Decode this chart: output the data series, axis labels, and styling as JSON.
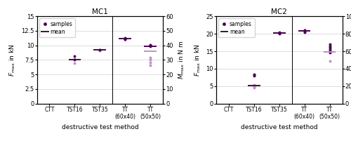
{
  "title1": "MC1",
  "title2": "MC2",
  "xlabel": "destructive test method",
  "ylabel_left": "$F_\\mathrm{max}$ in kN",
  "ylabel_right": "$M_\\mathrm{max}$ in N m",
  "color_dark": "#4a0050",
  "color_light": "#c090c8",
  "mc1": {
    "ylim_left": [
      0,
      15
    ],
    "ylim_right": [
      0,
      60
    ],
    "yticks_left": [
      0,
      2.5,
      5.0,
      7.5,
      10.0,
      12.5,
      15.0
    ],
    "yticks_right": [
      0,
      10,
      20,
      30,
      40,
      50,
      60
    ],
    "ytick_labels_left": [
      "0",
      "2.5",
      "5",
      "7.5",
      "10",
      "12.5",
      "15"
    ],
    "ytick_labels_right": [
      "0",
      "10",
      "20",
      "30",
      "40",
      "50",
      "60"
    ],
    "left_dark_samples": {
      "CTT": [],
      "TST16": [
        7.6,
        8.1
      ],
      "TST35": [
        9.2,
        9.3
      ]
    },
    "left_light_samples": {
      "CTT": [],
      "TST16": [
        7.5,
        7.7,
        6.9
      ],
      "TST35": [
        9.1
      ]
    },
    "left_means": {
      "CTT": null,
      "TST16": 7.6,
      "TST35": 9.25
    },
    "right_F_dark_samples": {
      "TT(60x40)": [
        11.0,
        11.1,
        11.2,
        11.35
      ],
      "TT(50x50)": [
        9.8,
        9.95,
        10.05
      ]
    },
    "right_F_means": {
      "TT(60x40)": 11.15,
      "TT(50x50)": 9.9
    },
    "right_M_light_samples": {
      "TT(60x40)": [],
      "TT(50x50)": [
        26.5,
        28.5,
        30.0,
        31.5,
        40.0,
        40.5
      ]
    },
    "right_M_means": {
      "TT(60x40)": null,
      "TT(50x50)": 36.0
    }
  },
  "mc2": {
    "ylim_left": [
      0,
      25
    ],
    "ylim_right": [
      0,
      100
    ],
    "yticks_left": [
      0,
      5,
      10,
      15,
      20,
      25
    ],
    "yticks_right": [
      0,
      20,
      40,
      60,
      80,
      100
    ],
    "ytick_labels_left": [
      "0",
      "5",
      "10",
      "15",
      "20",
      "25"
    ],
    "ytick_labels_right": [
      "0",
      "20",
      "40",
      "60",
      "80",
      "100"
    ],
    "left_dark_samples": {
      "CTT": [],
      "TST16": [
        8.05,
        8.2,
        8.45
      ],
      "TST35": [
        20.1,
        20.2,
        20.3,
        20.4
      ]
    },
    "left_light_samples": {
      "CTT": [],
      "TST16": [
        4.5,
        4.8,
        5.2,
        5.35
      ],
      "TST35": []
    },
    "left_means": {
      "CTT": null,
      "TST16": 5.1,
      "TST35": 20.25
    },
    "right_F_dark_samples": {
      "TT(60x40)": [
        20.5,
        20.7,
        20.95,
        21.1
      ],
      "TT(50x50)": [
        14.5,
        15.5,
        16.0,
        16.5,
        17.0
      ]
    },
    "right_F_means": {
      "TT(60x40)": 20.8,
      "TT(50x50)": 14.8
    },
    "right_M_light_samples": {
      "TT(60x40)": [],
      "TT(50x50)": [
        49.0,
        60.5,
        62.0,
        63.5,
        65.5,
        67.0
      ]
    },
    "right_M_means": {
      "TT(60x40)": null,
      "TT(50x50)": 59.0
    }
  }
}
